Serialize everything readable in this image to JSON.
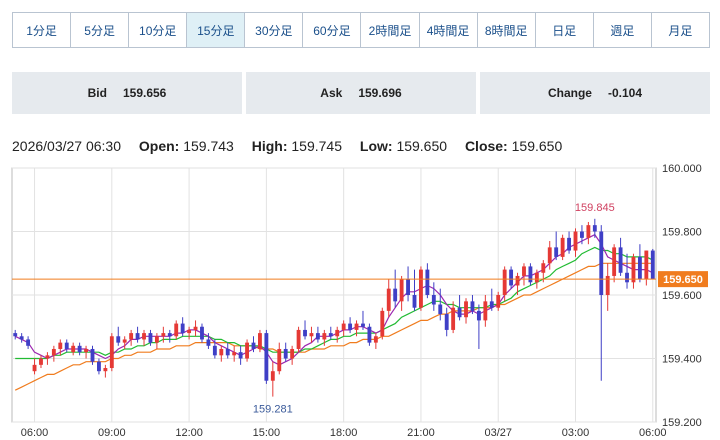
{
  "timeframes": [
    {
      "label": "1分足",
      "active": false
    },
    {
      "label": "5分足",
      "active": false
    },
    {
      "label": "10分足",
      "active": false
    },
    {
      "label": "15分足",
      "active": true
    },
    {
      "label": "30分足",
      "active": false
    },
    {
      "label": "60分足",
      "active": false
    },
    {
      "label": "2時間足",
      "active": false
    },
    {
      "label": "4時間足",
      "active": false
    },
    {
      "label": "8時間足",
      "active": false
    },
    {
      "label": "日足",
      "active": false
    },
    {
      "label": "週足",
      "active": false
    },
    {
      "label": "月足",
      "active": false
    }
  ],
  "quote": {
    "bid_label": "Bid",
    "bid": "159.656",
    "ask_label": "Ask",
    "ask": "159.696",
    "change_label": "Change",
    "change": "-0.104"
  },
  "ohlc": {
    "datetime": "2026/03/27 06:30",
    "open_label": "Open:",
    "open": "159.743",
    "high_label": "High:",
    "high": "159.745",
    "low_label": "Low:",
    "low": "159.650",
    "close_label": "Close:",
    "close": "159.650"
  },
  "chart_data": {
    "type": "candlestick",
    "ylim": [
      159.2,
      160.0
    ],
    "y_ticks": [
      "160.000",
      "159.800",
      "159.600",
      "159.400",
      "159.200"
    ],
    "x_ticks": [
      "06:00",
      "09:00",
      "12:00",
      "15:00",
      "18:00",
      "21:00",
      "03/27",
      "03:00",
      "06:00"
    ],
    "x_tick_index": [
      3,
      15,
      27,
      39,
      51,
      63,
      75,
      87,
      99
    ],
    "current_price": "159.650",
    "high_annotation": "159.845",
    "low_annotation": "159.281",
    "colors": {
      "up": "#e53935",
      "down": "#3f3fc6",
      "ma_fast": "#9c27b0",
      "ma_mid": "#22bb33",
      "ma_slow": "#f07c1e",
      "price_line": "#f07c1e"
    },
    "candles": [
      [
        159.48,
        159.49,
        159.46,
        159.47
      ],
      [
        159.47,
        159.48,
        159.45,
        159.46
      ],
      [
        159.46,
        159.47,
        159.43,
        159.44
      ],
      [
        159.36,
        159.4,
        159.35,
        159.38
      ],
      [
        159.38,
        159.41,
        159.37,
        159.4
      ],
      [
        159.4,
        159.42,
        159.38,
        159.41
      ],
      [
        159.41,
        159.44,
        159.39,
        159.43
      ],
      [
        159.43,
        159.46,
        159.41,
        159.45
      ],
      [
        159.45,
        159.46,
        159.42,
        159.43
      ],
      [
        159.42,
        159.45,
        159.41,
        159.44
      ],
      [
        159.44,
        159.45,
        159.41,
        159.42
      ],
      [
        159.42,
        159.44,
        159.4,
        159.43
      ],
      [
        159.43,
        159.44,
        159.38,
        159.39
      ],
      [
        159.39,
        159.4,
        159.35,
        159.36
      ],
      [
        159.36,
        159.38,
        159.34,
        159.37
      ],
      [
        159.37,
        159.48,
        159.36,
        159.47
      ],
      [
        159.47,
        159.5,
        159.44,
        159.45
      ],
      [
        159.45,
        159.47,
        159.43,
        159.46
      ],
      [
        159.46,
        159.49,
        159.44,
        159.48
      ],
      [
        159.48,
        159.5,
        159.45,
        159.46
      ],
      [
        159.46,
        159.49,
        159.44,
        159.48
      ],
      [
        159.48,
        159.49,
        159.44,
        159.45
      ],
      [
        159.45,
        159.48,
        159.43,
        159.47
      ],
      [
        159.47,
        159.5,
        159.45,
        159.48
      ],
      [
        159.48,
        159.49,
        159.45,
        159.47
      ],
      [
        159.47,
        159.52,
        159.46,
        159.51
      ],
      [
        159.51,
        159.53,
        159.47,
        159.48
      ],
      [
        159.48,
        159.5,
        159.46,
        159.49
      ],
      [
        159.49,
        159.52,
        159.47,
        159.5
      ],
      [
        159.5,
        159.51,
        159.45,
        159.46
      ],
      [
        159.46,
        159.48,
        159.43,
        159.44
      ],
      [
        159.44,
        159.46,
        159.4,
        159.41
      ],
      [
        159.41,
        159.44,
        159.39,
        159.43
      ],
      [
        159.43,
        159.45,
        159.4,
        159.41
      ],
      [
        159.41,
        159.44,
        159.39,
        159.42
      ],
      [
        159.42,
        159.44,
        159.38,
        159.4
      ],
      [
        159.4,
        159.46,
        159.39,
        159.45
      ],
      [
        159.45,
        159.47,
        159.42,
        159.43
      ],
      [
        159.43,
        159.49,
        159.42,
        159.48
      ],
      [
        159.48,
        159.49,
        159.32,
        159.33
      ],
      [
        159.33,
        159.39,
        159.28,
        159.36
      ],
      [
        159.36,
        159.45,
        159.35,
        159.43
      ],
      [
        159.43,
        159.45,
        159.39,
        159.4
      ],
      [
        159.4,
        159.44,
        159.38,
        159.43
      ],
      [
        159.43,
        159.5,
        159.42,
        159.49
      ],
      [
        159.49,
        159.52,
        159.46,
        159.47
      ],
      [
        159.47,
        159.5,
        159.45,
        159.48
      ],
      [
        159.48,
        159.5,
        159.45,
        159.46
      ],
      [
        159.46,
        159.49,
        159.44,
        159.48
      ],
      [
        159.48,
        159.5,
        159.46,
        159.47
      ],
      [
        159.47,
        159.5,
        159.45,
        159.49
      ],
      [
        159.49,
        159.52,
        159.47,
        159.51
      ],
      [
        159.51,
        159.53,
        159.48,
        159.49
      ],
      [
        159.49,
        159.52,
        159.47,
        159.51
      ],
      [
        159.51,
        159.55,
        159.49,
        159.5
      ],
      [
        159.5,
        159.51,
        159.44,
        159.45
      ],
      [
        159.45,
        159.48,
        159.43,
        159.47
      ],
      [
        159.47,
        159.56,
        159.46,
        159.55
      ],
      [
        159.55,
        159.65,
        159.53,
        159.62
      ],
      [
        159.62,
        159.68,
        159.56,
        159.58
      ],
      [
        159.58,
        159.66,
        159.55,
        159.65
      ],
      [
        159.65,
        159.69,
        159.58,
        159.6
      ],
      [
        159.6,
        159.68,
        159.55,
        159.56
      ],
      [
        159.56,
        159.69,
        159.55,
        159.68
      ],
      [
        159.68,
        159.7,
        159.59,
        159.6
      ],
      [
        159.6,
        159.64,
        159.55,
        159.57
      ],
      [
        159.57,
        159.62,
        159.52,
        159.54
      ],
      [
        159.54,
        159.56,
        159.47,
        159.49
      ],
      [
        159.49,
        159.58,
        159.48,
        159.56
      ],
      [
        159.56,
        159.6,
        159.52,
        159.53
      ],
      [
        159.53,
        159.59,
        159.51,
        159.58
      ],
      [
        159.58,
        159.6,
        159.54,
        159.55
      ],
      [
        159.55,
        159.57,
        159.43,
        159.52
      ],
      [
        159.52,
        159.6,
        159.5,
        159.58
      ],
      [
        159.58,
        159.62,
        159.55,
        159.56
      ],
      [
        159.56,
        159.61,
        159.55,
        159.6
      ],
      [
        159.6,
        159.69,
        159.58,
        159.68
      ],
      [
        159.68,
        159.69,
        159.62,
        159.63
      ],
      [
        159.63,
        159.67,
        159.6,
        159.66
      ],
      [
        159.66,
        159.7,
        159.63,
        159.69
      ],
      [
        159.69,
        159.7,
        159.63,
        159.64
      ],
      [
        159.64,
        159.68,
        159.62,
        159.67
      ],
      [
        159.67,
        159.71,
        159.64,
        159.7
      ],
      [
        159.7,
        159.77,
        159.68,
        159.75
      ],
      [
        159.75,
        159.8,
        159.71,
        159.72
      ],
      [
        159.72,
        159.79,
        159.71,
        159.78
      ],
      [
        159.78,
        159.8,
        159.73,
        159.74
      ],
      [
        159.74,
        159.81,
        159.72,
        159.8
      ],
      [
        159.8,
        159.82,
        159.76,
        159.78
      ],
      [
        159.78,
        159.83,
        159.76,
        159.82
      ],
      [
        159.82,
        159.84,
        159.78,
        159.8
      ],
      [
        159.8,
        159.82,
        159.33,
        159.6
      ],
      [
        159.6,
        159.7,
        159.55,
        159.66
      ],
      [
        159.66,
        159.76,
        159.64,
        159.75
      ],
      [
        159.75,
        159.78,
        159.66,
        159.67
      ],
      [
        159.67,
        159.73,
        159.62,
        159.64
      ],
      [
        159.64,
        159.73,
        159.62,
        159.72
      ],
      [
        159.72,
        159.76,
        159.64,
        159.65
      ],
      [
        159.65,
        159.74,
        159.63,
        159.74
      ],
      [
        159.74,
        159.745,
        159.65,
        159.65
      ]
    ],
    "ma_fast": [
      159.47,
      159.46,
      159.45,
      159.42,
      159.41,
      159.4,
      159.41,
      159.42,
      159.43,
      159.43,
      159.43,
      159.43,
      159.42,
      159.41,
      159.4,
      159.41,
      159.43,
      159.44,
      159.46,
      159.46,
      159.47,
      159.47,
      159.47,
      159.47,
      159.47,
      159.48,
      159.48,
      159.49,
      159.49,
      159.48,
      159.47,
      159.45,
      159.44,
      159.43,
      159.42,
      159.41,
      159.42,
      159.43,
      159.44,
      159.42,
      159.39,
      159.38,
      159.39,
      159.4,
      159.42,
      159.44,
      159.45,
      159.47,
      159.47,
      159.47,
      159.48,
      159.49,
      159.49,
      159.5,
      159.5,
      159.49,
      159.48,
      159.49,
      159.53,
      159.56,
      159.59,
      159.61,
      159.61,
      159.62,
      159.63,
      159.62,
      159.6,
      159.57,
      159.55,
      159.54,
      159.54,
      159.55,
      159.54,
      159.55,
      159.56,
      159.57,
      159.6,
      159.62,
      159.64,
      159.66,
      159.66,
      159.67,
      159.68,
      159.7,
      159.72,
      159.73,
      159.75,
      159.76,
      159.77,
      159.78,
      159.79,
      159.76,
      159.72,
      159.71,
      159.7,
      159.69,
      159.68,
      159.68,
      159.68,
      159.67
    ],
    "ma_mid": [
      159.4,
      159.4,
      159.4,
      159.4,
      159.4,
      159.4,
      159.41,
      159.41,
      159.42,
      159.42,
      159.42,
      159.42,
      159.42,
      159.42,
      159.41,
      159.42,
      159.42,
      159.43,
      159.43,
      159.44,
      159.44,
      159.45,
      159.45,
      159.46,
      159.46,
      159.46,
      159.47,
      159.47,
      159.47,
      159.47,
      159.47,
      159.46,
      159.46,
      159.45,
      159.45,
      159.44,
      159.44,
      159.44,
      159.44,
      159.43,
      159.42,
      159.42,
      159.42,
      159.42,
      159.42,
      159.43,
      159.43,
      159.44,
      159.45,
      159.46,
      159.46,
      159.47,
      159.47,
      159.48,
      159.48,
      159.48,
      159.48,
      159.49,
      159.5,
      159.51,
      159.53,
      159.54,
      159.55,
      159.56,
      159.57,
      159.58,
      159.58,
      159.57,
      159.57,
      159.56,
      159.56,
      159.56,
      159.56,
      159.56,
      159.57,
      159.57,
      159.58,
      159.59,
      159.61,
      159.62,
      159.63,
      159.64,
      159.65,
      159.66,
      159.68,
      159.69,
      159.7,
      159.71,
      159.73,
      159.74,
      159.75,
      159.74,
      159.74,
      159.73,
      159.73,
      159.72,
      159.72,
      159.72,
      159.72,
      159.71
    ],
    "ma_slow": [
      159.3,
      159.31,
      159.32,
      159.33,
      159.34,
      159.35,
      159.35,
      159.36,
      159.37,
      159.38,
      159.38,
      159.39,
      159.39,
      159.39,
      159.39,
      159.4,
      159.4,
      159.41,
      159.41,
      159.42,
      159.42,
      159.42,
      159.43,
      159.43,
      159.43,
      159.44,
      159.44,
      159.44,
      159.45,
      159.45,
      159.45,
      159.45,
      159.45,
      159.45,
      159.44,
      159.44,
      159.44,
      159.44,
      159.43,
      159.43,
      159.43,
      159.42,
      159.42,
      159.42,
      159.42,
      159.42,
      159.43,
      159.43,
      159.43,
      159.44,
      159.44,
      159.44,
      159.45,
      159.45,
      159.46,
      159.46,
      159.46,
      159.47,
      159.47,
      159.48,
      159.49,
      159.5,
      159.51,
      159.52,
      159.52,
      159.53,
      159.54,
      159.54,
      159.55,
      159.55,
      159.55,
      159.55,
      159.56,
      159.56,
      159.56,
      159.57,
      159.57,
      159.58,
      159.59,
      159.6,
      159.6,
      159.61,
      159.62,
      159.63,
      159.64,
      159.65,
      159.66,
      159.67,
      159.68,
      159.69,
      159.69,
      159.7,
      159.7,
      159.7,
      159.7,
      159.7,
      159.7,
      159.7,
      159.7,
      159.7
    ]
  }
}
